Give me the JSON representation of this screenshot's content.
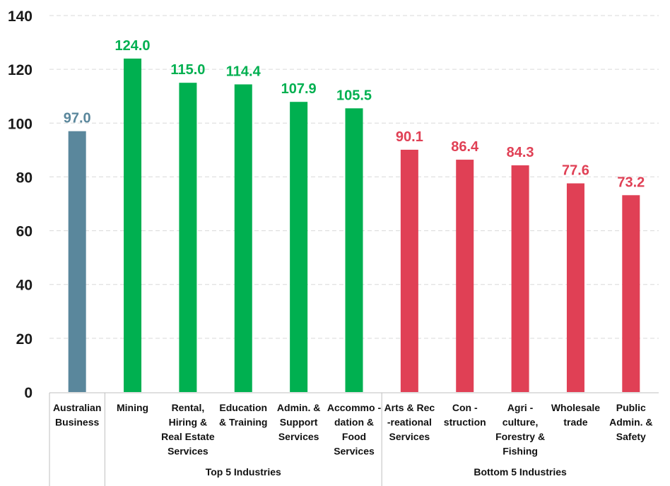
{
  "chart_data": {
    "type": "bar",
    "title": "",
    "xlabel": "",
    "ylabel": "",
    "ylim": [
      0,
      140
    ],
    "yticks": [
      "0",
      "20",
      "40",
      "60",
      "80",
      "100",
      "120",
      "140"
    ],
    "grid": true,
    "categories": [
      [
        "Australian",
        "Business"
      ],
      [
        "Mining"
      ],
      [
        "Rental,",
        "Hiring &",
        "Real Estate",
        "Services"
      ],
      [
        "Education",
        "& Training"
      ],
      [
        "Admin. &",
        "Support",
        "Services"
      ],
      [
        "Accommo -",
        "dation &",
        "Food",
        "Services"
      ],
      [
        "Arts & Rec",
        "-reational",
        "Services"
      ],
      [
        "Con -",
        "struction"
      ],
      [
        "Agri -",
        "culture,",
        "Forestry &",
        "Fishing"
      ],
      [
        "Wholesale",
        "trade"
      ],
      [
        "Public",
        "Admin. &",
        "Safety"
      ]
    ],
    "values": [
      97.0,
      124.0,
      115.0,
      114.4,
      107.9,
      105.5,
      90.1,
      86.4,
      84.3,
      77.6,
      73.2
    ],
    "value_labels": [
      "97.0",
      "124.0",
      "115.0",
      "114.4",
      "107.9",
      "105.5",
      "90.1",
      "86.4",
      "84.3",
      "77.6",
      "73.2"
    ],
    "groups": [
      {
        "label": "",
        "start": 0,
        "end": 0
      },
      {
        "label": "Top 5 Industries",
        "start": 1,
        "end": 5
      },
      {
        "label": "Bottom 5 Industries",
        "start": 6,
        "end": 10
      }
    ],
    "colors": {
      "benchmark": "#5a879c",
      "top": "#00b050",
      "bottom": "#e04055"
    },
    "bar_color_keys": [
      "benchmark",
      "top",
      "top",
      "top",
      "top",
      "top",
      "bottom",
      "bottom",
      "bottom",
      "bottom",
      "bottom"
    ]
  }
}
